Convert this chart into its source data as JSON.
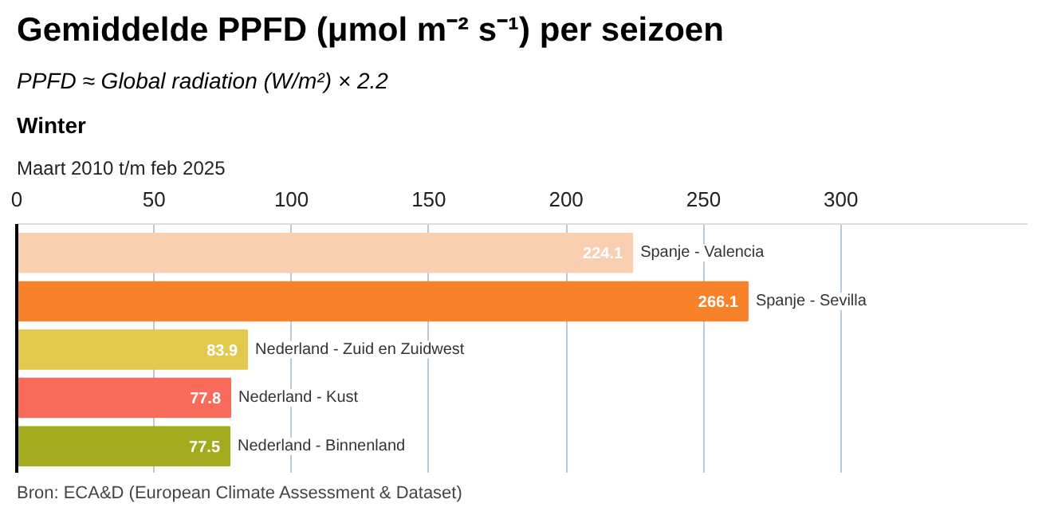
{
  "chart_data": {
    "type": "bar",
    "orientation": "horizontal",
    "title": "Gemiddelde PPFD (μmol m⁻² s⁻¹) per seizoen",
    "subtitle": "PPFD ≈ Global radiation (W/m²) × 2.2",
    "annotations": [
      "Winter",
      "Maart 2010 t/m feb 2025",
      "Bron: ECA&D (European Climate Assessment & Dataset)"
    ],
    "categories": [
      "Spanje - Valencia",
      "Spanje - Sevilla",
      "Nederland - Zuid en Zuidwest",
      "Nederland - Kust",
      "Nederland - Binnenland"
    ],
    "values": [
      224.1,
      266.1,
      83.9,
      77.8,
      77.5
    ],
    "colors": [
      "#f9cfb1",
      "#f8822a",
      "#e2c84c",
      "#f96b5a",
      "#a2ab1e"
    ],
    "xlim": [
      0,
      368
    ],
    "xticks": [
      0,
      50,
      100,
      150,
      200,
      250,
      300
    ],
    "grid": "x",
    "data_labels": true
  }
}
